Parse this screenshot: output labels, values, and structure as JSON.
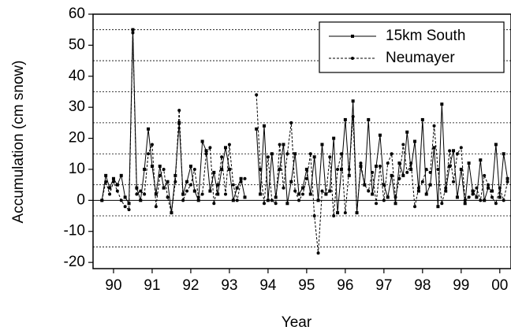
{
  "chart_data": {
    "type": "line",
    "xlabel": "Year",
    "ylabel": "Accumulation (cm snow)",
    "x": [
      1989.7,
      1989.8,
      1989.9,
      1990.0,
      1990.1,
      1990.2,
      1990.3,
      1990.4,
      1990.5,
      1990.6,
      1990.7,
      1990.8,
      1990.9,
      1991.0,
      1991.1,
      1991.2,
      1991.3,
      1991.4,
      1991.5,
      1991.6,
      1991.7,
      1991.8,
      1991.9,
      1992.0,
      1992.1,
      1992.2,
      1992.3,
      1992.4,
      1992.5,
      1992.6,
      1992.7,
      1992.8,
      1992.9,
      1993.0,
      1993.1,
      1993.2,
      1993.3,
      1993.4,
      1993.5,
      1993.6,
      1993.7,
      1993.8,
      1993.9,
      1994.0,
      1994.1,
      1994.2,
      1994.3,
      1994.4,
      1994.5,
      1994.6,
      1994.7,
      1994.8,
      1994.9,
      1995.0,
      1995.1,
      1995.2,
      1995.3,
      1995.4,
      1995.5,
      1995.6,
      1995.7,
      1995.8,
      1995.9,
      1996.0,
      1996.1,
      1996.2,
      1996.3,
      1996.4,
      1996.5,
      1996.6,
      1996.7,
      1996.8,
      1996.9,
      1997.0,
      1997.1,
      1997.2,
      1997.3,
      1997.4,
      1997.5,
      1997.6,
      1997.7,
      1997.8,
      1997.9,
      1998.0,
      1998.1,
      1998.2,
      1998.3,
      1998.4,
      1998.5,
      1998.6,
      1998.7,
      1998.8,
      1998.9,
      1999.0,
      1999.1,
      1999.2,
      1999.3,
      1999.4,
      1999.5,
      1999.6,
      1999.7,
      1999.8,
      1999.9,
      2000.0,
      2000.1,
      2000.2
    ],
    "series": [
      {
        "name": "15km South",
        "color": "#000000",
        "dashed": false,
        "marker": "square",
        "values": [
          0,
          8,
          4,
          7,
          5,
          8,
          1,
          -1,
          55,
          4,
          0,
          10,
          23,
          11,
          2,
          11,
          4,
          6,
          -4,
          8,
          25,
          2,
          6,
          11,
          3,
          0,
          19,
          16,
          3,
          9,
          2,
          10,
          17,
          10,
          0,
          4,
          7,
          1,
          null,
          null,
          23,
          2,
          24,
          0,
          15,
          1,
          10,
          18,
          -1,
          6,
          15,
          2,
          4,
          10,
          2,
          14,
          0,
          18,
          2,
          3,
          20,
          -4,
          10,
          26,
          8,
          32,
          -4,
          11,
          5,
          26,
          2,
          11,
          21,
          5,
          1,
          8,
          -1,
          12,
          8,
          22,
          10,
          19,
          3,
          26,
          2,
          5,
          17,
          -2,
          31,
          3,
          11,
          16,
          1,
          10,
          -1,
          12,
          3,
          1,
          13,
          0,
          4,
          3,
          18,
          1,
          15,
          7
        ]
      },
      {
        "name": "Neumayer",
        "color": "#000000",
        "dashed": true,
        "marker": "circle",
        "values": [
          0,
          6,
          2,
          6,
          3,
          0,
          -2,
          -3,
          54,
          2,
          3,
          2,
          15,
          18,
          -2,
          8,
          10,
          1,
          -4,
          6,
          29,
          0,
          3,
          5,
          10,
          1,
          2,
          15,
          17,
          -1,
          5,
          14,
          2,
          18,
          5,
          0,
          6,
          7,
          null,
          null,
          34,
          10,
          -1,
          14,
          0,
          -1,
          18,
          4,
          15,
          25,
          3,
          0,
          2,
          7,
          15,
          -5,
          -17,
          3,
          2,
          14,
          -5,
          10,
          15,
          -4,
          10,
          27,
          -4,
          12,
          5,
          3,
          9,
          -1,
          11,
          0,
          12,
          15,
          1,
          7,
          18,
          9,
          12,
          -2,
          4,
          6,
          10,
          9,
          24,
          10,
          -1,
          4,
          16,
          6,
          15,
          17,
          0,
          1,
          2,
          4,
          0,
          8,
          5,
          1,
          -1,
          4,
          0,
          6
        ]
      }
    ],
    "xlim": [
      1989.47,
      2000.29
    ],
    "xticks": [
      {
        "value": 1990,
        "label": "90"
      },
      {
        "value": 1991,
        "label": "91"
      },
      {
        "value": 1992,
        "label": "92"
      },
      {
        "value": 1993,
        "label": "93"
      },
      {
        "value": 1994,
        "label": "94"
      },
      {
        "value": 1995,
        "label": "95"
      },
      {
        "value": 1996,
        "label": "96"
      },
      {
        "value": 1997,
        "label": "97"
      },
      {
        "value": 1998,
        "label": "98"
      },
      {
        "value": 1999,
        "label": "99"
      },
      {
        "value": 2000,
        "label": "00"
      }
    ],
    "ylim": [
      -22,
      60
    ],
    "yticks": [
      -20,
      -10,
      0,
      10,
      20,
      30,
      40,
      50,
      60
    ],
    "ygrid_dotted": [
      -15,
      -5,
      5,
      15,
      25,
      35,
      45,
      55
    ],
    "ygrid_solid": [
      0
    ],
    "legend": "upper right"
  }
}
